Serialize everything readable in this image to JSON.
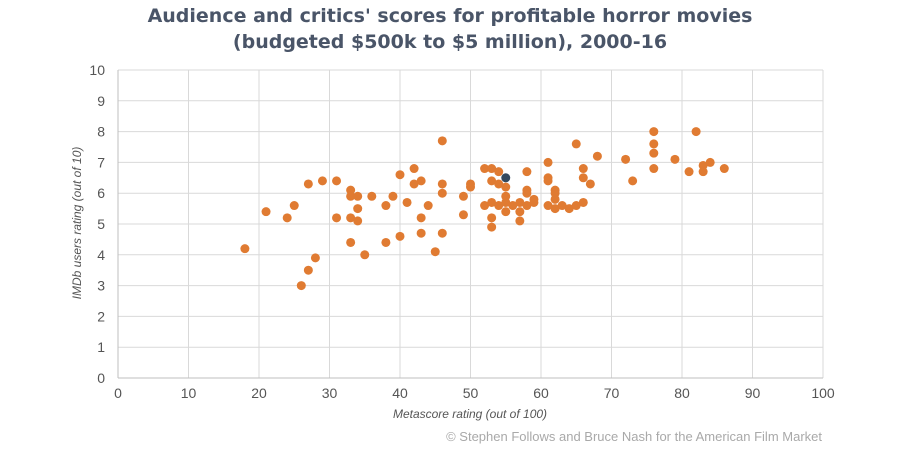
{
  "chart_data": {
    "type": "scatter",
    "title_line1": "Audience and critics' scores for profitable horror movies",
    "title_line2": "(budgeted $500k to $5 million), 2000-16",
    "xlabel": "Metascore rating (out of 100)",
    "ylabel": "IMDb users rating (out of 10)",
    "xlim": [
      0,
      100
    ],
    "ylim": [
      0,
      10
    ],
    "xticks": [
      0,
      10,
      20,
      30,
      40,
      50,
      60,
      70,
      80,
      90,
      100
    ],
    "yticks": [
      0,
      1,
      2,
      3,
      4,
      5,
      6,
      7,
      8,
      9,
      10
    ],
    "grid": true,
    "point_color": "#e07b32",
    "highlight_color": "#34495e",
    "series": [
      {
        "name": "Movies",
        "points": [
          [
            18,
            4.2
          ],
          [
            21,
            5.4
          ],
          [
            24,
            5.2
          ],
          [
            25,
            5.6
          ],
          [
            26,
            3.0
          ],
          [
            27,
            3.5
          ],
          [
            27,
            6.3
          ],
          [
            28,
            3.9
          ],
          [
            29,
            6.4
          ],
          [
            31,
            5.2
          ],
          [
            31,
            6.4
          ],
          [
            33,
            6.1
          ],
          [
            33,
            5.9
          ],
          [
            33,
            5.2
          ],
          [
            33,
            4.4
          ],
          [
            34,
            5.9
          ],
          [
            34,
            5.5
          ],
          [
            34,
            5.1
          ],
          [
            35,
            4.0
          ],
          [
            36,
            5.9
          ],
          [
            38,
            4.4
          ],
          [
            38,
            5.6
          ],
          [
            39,
            5.9
          ],
          [
            40,
            4.6
          ],
          [
            40,
            6.6
          ],
          [
            41,
            5.7
          ],
          [
            42,
            6.8
          ],
          [
            42,
            6.3
          ],
          [
            43,
            6.4
          ],
          [
            43,
            5.2
          ],
          [
            43,
            4.7
          ],
          [
            44,
            5.6
          ],
          [
            45,
            4.1
          ],
          [
            46,
            7.7
          ],
          [
            46,
            6.3
          ],
          [
            46,
            6.0
          ],
          [
            46,
            4.7
          ],
          [
            49,
            5.9
          ],
          [
            49,
            5.3
          ],
          [
            50,
            6.3
          ],
          [
            50,
            6.2
          ],
          [
            52,
            6.8
          ],
          [
            52,
            5.6
          ],
          [
            53,
            6.8
          ],
          [
            53,
            6.4
          ],
          [
            53,
            5.7
          ],
          [
            53,
            5.2
          ],
          [
            53,
            4.9
          ],
          [
            54,
            6.7
          ],
          [
            54,
            6.3
          ],
          [
            54,
            5.6
          ],
          [
            55,
            6.2
          ],
          [
            55,
            5.9
          ],
          [
            55,
            5.7
          ],
          [
            55,
            5.4
          ],
          [
            56,
            5.6
          ],
          [
            57,
            5.7
          ],
          [
            57,
            5.4
          ],
          [
            57,
            5.1
          ],
          [
            58,
            6.7
          ],
          [
            58,
            6.1
          ],
          [
            58,
            6.0
          ],
          [
            58,
            5.6
          ],
          [
            59,
            5.8
          ],
          [
            59,
            5.7
          ],
          [
            61,
            7.0
          ],
          [
            61,
            6.5
          ],
          [
            61,
            6.4
          ],
          [
            61,
            5.6
          ],
          [
            62,
            6.1
          ],
          [
            62,
            6.0
          ],
          [
            62,
            5.8
          ],
          [
            62,
            5.5
          ],
          [
            63,
            5.6
          ],
          [
            64,
            5.5
          ],
          [
            65,
            7.6
          ],
          [
            65,
            5.6
          ],
          [
            66,
            6.8
          ],
          [
            66,
            6.5
          ],
          [
            66,
            5.7
          ],
          [
            67,
            6.3
          ],
          [
            68,
            7.2
          ],
          [
            72,
            7.1
          ],
          [
            73,
            6.4
          ],
          [
            76,
            8.0
          ],
          [
            76,
            7.6
          ],
          [
            76,
            7.3
          ],
          [
            76,
            6.8
          ],
          [
            79,
            7.1
          ],
          [
            81,
            6.7
          ],
          [
            82,
            8.0
          ],
          [
            83,
            6.9
          ],
          [
            83,
            6.7
          ],
          [
            84,
            7.0
          ],
          [
            86,
            6.8
          ]
        ]
      },
      {
        "name": "Highlighted movie",
        "points": [
          [
            55,
            6.5
          ]
        ]
      }
    ]
  },
  "credit": "© Stephen Follows and Bruce Nash for the American Film Market"
}
